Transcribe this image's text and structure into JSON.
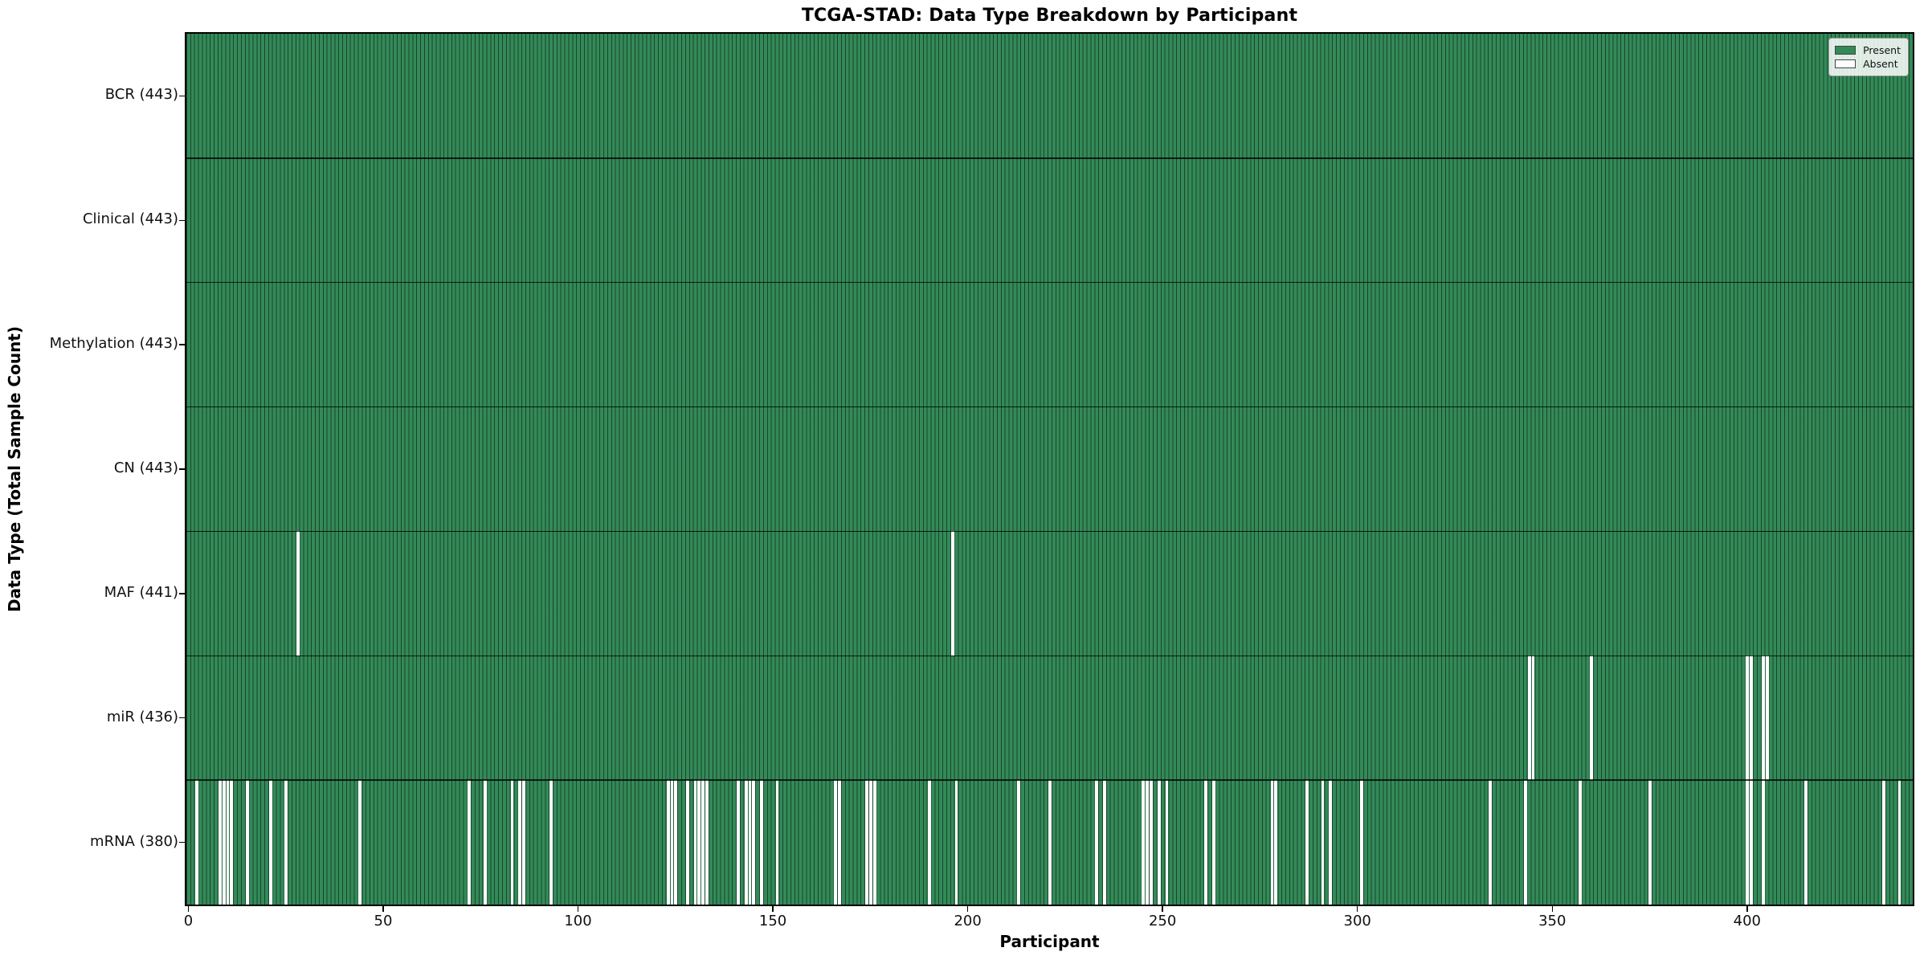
{
  "figure": {
    "title": "TCGA-STAD: Data Type Breakdown by Participant"
  },
  "chart_data": {
    "type": "heatmap",
    "title": "TCGA-STAD: Data Type Breakdown by Participant",
    "xlabel": "Participant",
    "ylabel": "Data Type (Total Sample Count)",
    "x_ticks": [
      0,
      50,
      100,
      150,
      200,
      250,
      300,
      350,
      400
    ],
    "n_participants": 443,
    "grid": false,
    "value_encoding": {
      "present": 1,
      "absent": 0
    },
    "legend": {
      "position": "upper right",
      "entries": [
        {
          "label": "Present",
          "color": "#338a58"
        },
        {
          "label": "Absent",
          "color": "#ffffff"
        }
      ]
    },
    "colors": {
      "present_fill": "#338a58",
      "absent_fill": "#ffffff",
      "bar_edge": "rgba(0,0,0,0.5)",
      "row_divider": "rgba(0,0,0,0.78)",
      "axis": "#000000",
      "background": "#ffffff"
    },
    "rows": [
      {
        "data_type": "BCR",
        "label": "BCR (443)",
        "total_samples": 443,
        "absent_participants": []
      },
      {
        "data_type": "Clinical",
        "label": "Clinical (443)",
        "total_samples": 443,
        "absent_participants": []
      },
      {
        "data_type": "Methylation",
        "label": "Methylation (443)",
        "total_samples": 443,
        "absent_participants": []
      },
      {
        "data_type": "CN",
        "label": "CN (443)",
        "total_samples": 443,
        "absent_participants": []
      },
      {
        "data_type": "MAF",
        "label": "MAF (441)",
        "total_samples": 441,
        "absent_participants": [
          28,
          196
        ]
      },
      {
        "data_type": "miR",
        "label": "miR (436)",
        "total_samples": 436,
        "absent_participants": [
          344,
          345,
          360,
          400,
          401,
          404,
          405
        ]
      },
      {
        "data_type": "mRNA",
        "label": "mRNA (380)",
        "total_samples": 380,
        "absent_participants": [
          2,
          8,
          9,
          10,
          11,
          15,
          21,
          25,
          44,
          72,
          76,
          83,
          85,
          86,
          93,
          123,
          124,
          125,
          128,
          130,
          131,
          132,
          133,
          141,
          143,
          144,
          145,
          147,
          151,
          166,
          167,
          174,
          175,
          176,
          190,
          197,
          213,
          221,
          233,
          235,
          245,
          246,
          247,
          249,
          251,
          261,
          263,
          278,
          279,
          287,
          291,
          293,
          301,
          334,
          343,
          357,
          375,
          400,
          401,
          404,
          415,
          435,
          439
        ]
      }
    ]
  }
}
